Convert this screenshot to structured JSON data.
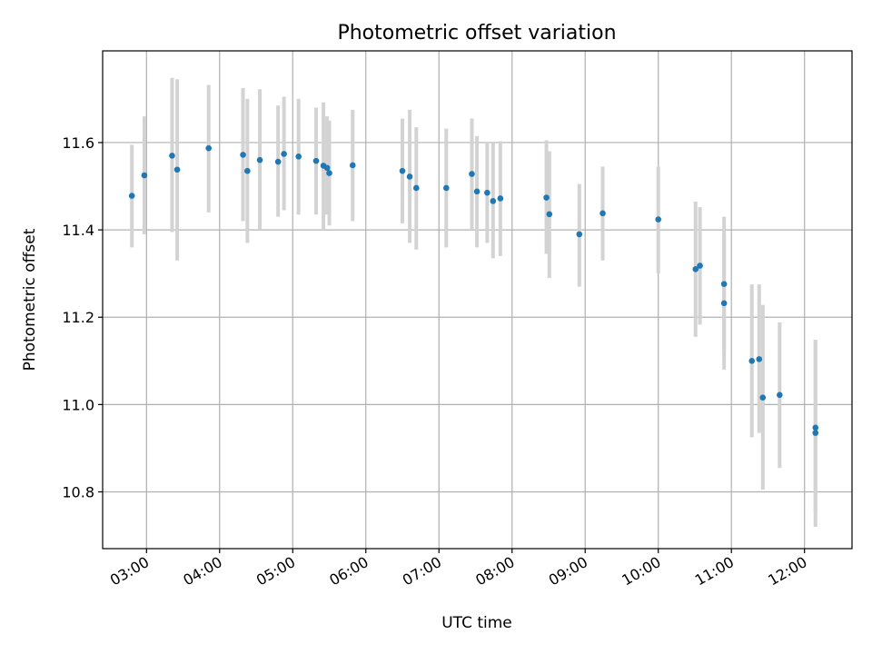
{
  "chart_data": {
    "type": "scatter",
    "title": "Photometric offset variation",
    "xlabel": "UTC time",
    "ylabel": "Photometric offset",
    "x_unit": "hours UTC",
    "xlim": [
      2.4,
      12.65
    ],
    "ylim": [
      10.67,
      11.81
    ],
    "grid": true,
    "x_ticks": [
      {
        "value": 3,
        "label": "03:00"
      },
      {
        "value": 4,
        "label": "04:00"
      },
      {
        "value": 5,
        "label": "05:00"
      },
      {
        "value": 6,
        "label": "06:00"
      },
      {
        "value": 7,
        "label": "07:00"
      },
      {
        "value": 8,
        "label": "08:00"
      },
      {
        "value": 9,
        "label": "09:00"
      },
      {
        "value": 10,
        "label": "10:00"
      },
      {
        "value": 11,
        "label": "11:00"
      },
      {
        "value": 12,
        "label": "12:00"
      }
    ],
    "y_ticks": [
      {
        "value": 10.8,
        "label": "10.8"
      },
      {
        "value": 11.0,
        "label": "11.0"
      },
      {
        "value": 11.2,
        "label": "11.2"
      },
      {
        "value": 11.4,
        "label": "11.4"
      },
      {
        "value": 11.6,
        "label": "11.6"
      }
    ],
    "colors": {
      "points": "#1f77b4",
      "errorbars": "#d3d3d3",
      "grid": "#b0b0b0"
    },
    "points": [
      {
        "x": 2.8,
        "y": 11.478,
        "lo": 11.36,
        "hi": 11.595
      },
      {
        "x": 2.97,
        "y": 11.525,
        "lo": 11.39,
        "hi": 11.66
      },
      {
        "x": 3.35,
        "y": 11.57,
        "lo": 11.395,
        "hi": 11.748
      },
      {
        "x": 3.42,
        "y": 11.538,
        "lo": 11.33,
        "hi": 11.745
      },
      {
        "x": 3.85,
        "y": 11.587,
        "lo": 11.44,
        "hi": 11.732
      },
      {
        "x": 4.32,
        "y": 11.572,
        "lo": 11.42,
        "hi": 11.725
      },
      {
        "x": 4.38,
        "y": 11.535,
        "lo": 11.37,
        "hi": 11.7
      },
      {
        "x": 4.55,
        "y": 11.56,
        "lo": 11.4,
        "hi": 11.722
      },
      {
        "x": 4.8,
        "y": 11.556,
        "lo": 11.43,
        "hi": 11.685
      },
      {
        "x": 4.88,
        "y": 11.574,
        "lo": 11.445,
        "hi": 11.705
      },
      {
        "x": 5.08,
        "y": 11.568,
        "lo": 11.435,
        "hi": 11.7
      },
      {
        "x": 5.32,
        "y": 11.558,
        "lo": 11.435,
        "hi": 11.68
      },
      {
        "x": 5.42,
        "y": 11.547,
        "lo": 11.4,
        "hi": 11.692
      },
      {
        "x": 5.47,
        "y": 11.542,
        "lo": 11.435,
        "hi": 11.66
      },
      {
        "x": 5.5,
        "y": 11.53,
        "lo": 11.41,
        "hi": 11.65
      },
      {
        "x": 5.82,
        "y": 11.548,
        "lo": 11.42,
        "hi": 11.675
      },
      {
        "x": 6.5,
        "y": 11.535,
        "lo": 11.415,
        "hi": 11.655
      },
      {
        "x": 6.6,
        "y": 11.522,
        "lo": 11.37,
        "hi": 11.675
      },
      {
        "x": 6.69,
        "y": 11.496,
        "lo": 11.355,
        "hi": 11.635
      },
      {
        "x": 7.1,
        "y": 11.496,
        "lo": 11.36,
        "hi": 11.632
      },
      {
        "x": 7.45,
        "y": 11.528,
        "lo": 11.4,
        "hi": 11.655
      },
      {
        "x": 7.52,
        "y": 11.488,
        "lo": 11.36,
        "hi": 11.615
      },
      {
        "x": 7.66,
        "y": 11.485,
        "lo": 11.37,
        "hi": 11.602
      },
      {
        "x": 7.74,
        "y": 11.466,
        "lo": 11.335,
        "hi": 11.598
      },
      {
        "x": 7.84,
        "y": 11.472,
        "lo": 11.34,
        "hi": 11.603
      },
      {
        "x": 8.47,
        "y": 11.474,
        "lo": 11.345,
        "hi": 11.605
      },
      {
        "x": 8.51,
        "y": 11.436,
        "lo": 11.29,
        "hi": 11.58
      },
      {
        "x": 8.92,
        "y": 11.39,
        "lo": 11.27,
        "hi": 11.505
      },
      {
        "x": 9.24,
        "y": 11.438,
        "lo": 11.33,
        "hi": 11.545
      },
      {
        "x": 10.0,
        "y": 11.424,
        "lo": 11.3,
        "hi": 11.545
      },
      {
        "x": 10.51,
        "y": 11.31,
        "lo": 11.155,
        "hi": 11.465
      },
      {
        "x": 10.57,
        "y": 11.318,
        "lo": 11.183,
        "hi": 11.452
      },
      {
        "x": 10.9,
        "y": 11.276,
        "lo": 11.122,
        "hi": 11.43
      },
      {
        "x": 10.9,
        "y": 11.232,
        "lo": 11.08,
        "hi": 11.385
      },
      {
        "x": 11.28,
        "y": 11.1,
        "lo": 10.925,
        "hi": 11.275
      },
      {
        "x": 11.38,
        "y": 11.104,
        "lo": 10.935,
        "hi": 11.275
      },
      {
        "x": 11.43,
        "y": 11.016,
        "lo": 10.805,
        "hi": 11.228
      },
      {
        "x": 11.66,
        "y": 11.022,
        "lo": 10.855,
        "hi": 11.188
      },
      {
        "x": 12.15,
        "y": 10.947,
        "lo": 10.75,
        "hi": 11.148
      },
      {
        "x": 12.15,
        "y": 10.935,
        "lo": 10.72,
        "hi": 11.148
      }
    ]
  }
}
